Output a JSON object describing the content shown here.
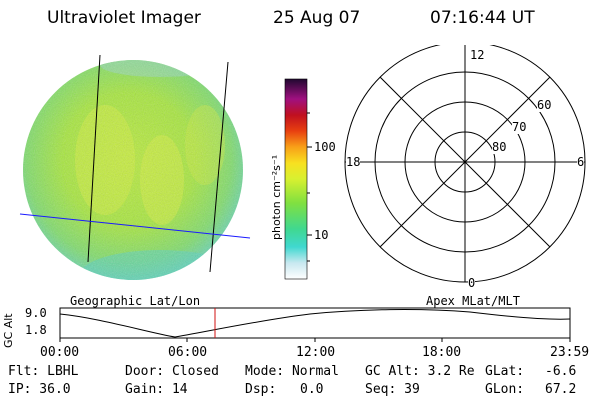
{
  "header": {
    "instrument": "Ultraviolet Imager",
    "date": "25 Aug 07",
    "time": "07:16:44 UT"
  },
  "colorbar": {
    "unit_label": "photon cm⁻²s⁻¹",
    "ticks": [
      "100",
      "10"
    ]
  },
  "polar_grid": {
    "mlt_labels": {
      "top": "12",
      "left": "18",
      "right": "6",
      "bottom": "0"
    },
    "mlat_labels": [
      "60",
      "70",
      "80"
    ]
  },
  "coord_labels": {
    "left": "Geographic Lat/Lon",
    "right": "Apex MLat/MLT"
  },
  "altitude_plot": {
    "ylabel": "GC Alt",
    "y_ticks": [
      "9.0",
      "1.8"
    ],
    "x_ticks": [
      "00:00",
      "06:00",
      "12:00",
      "18:00",
      "23:59"
    ]
  },
  "status": {
    "flt": "Flt: LBHL",
    "ip": "IP: 36.0",
    "door": "Door: Closed",
    "gain": "Gain: 14",
    "mode": "Mode: Normal",
    "dsp_label": "Dsp:",
    "dsp_value": "0.0",
    "gc_alt": "GC Alt: 3.2 Re",
    "seq": "Seq: 39",
    "glat_label": "GLat:",
    "glat_value": "-6.6",
    "glon_label": "GLon:",
    "glon_value": "67.2"
  },
  "colors": {
    "earth_disc": "#9ee63c",
    "track_line": "#000000",
    "blue_line": "#1a1aff",
    "time_marker": "#d01010"
  }
}
